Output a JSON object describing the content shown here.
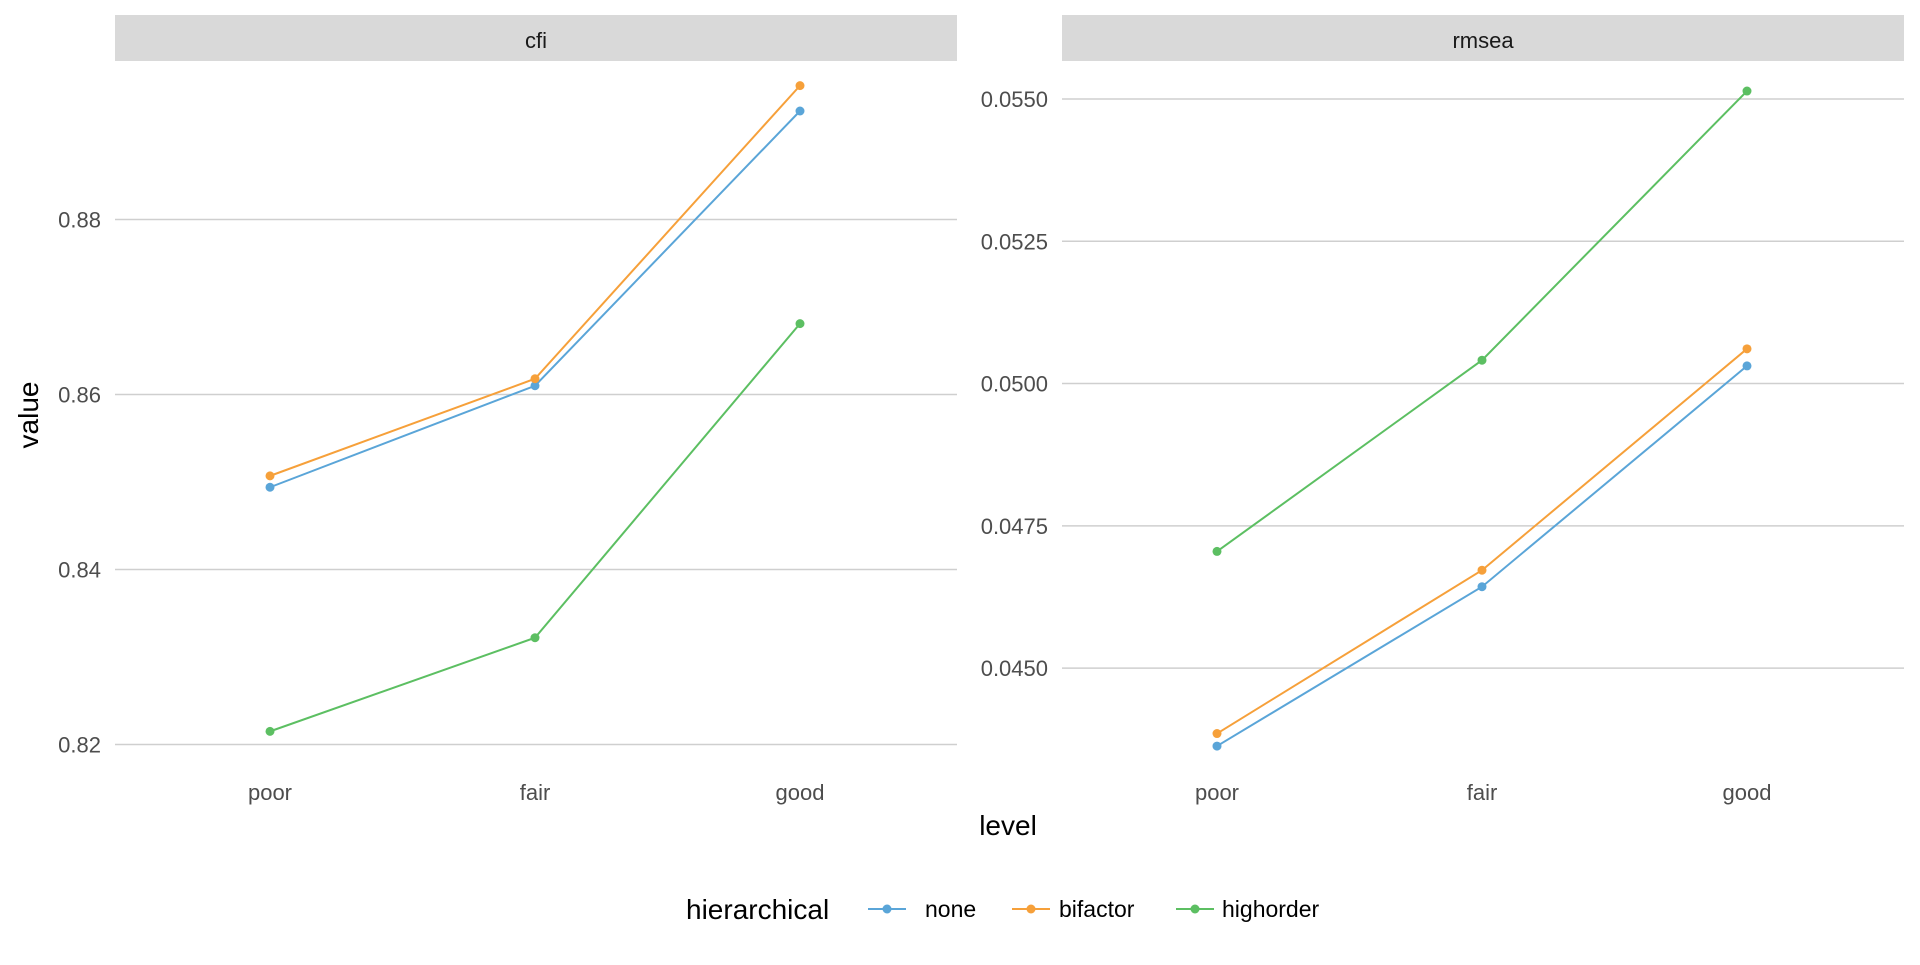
{
  "chart_data": {
    "type": "line",
    "xlabel": "level",
    "ylabel": "value",
    "categories": [
      "poor",
      "fair",
      "good"
    ],
    "legend": {
      "title": "hierarchical",
      "position": "bottom",
      "entries": [
        {
          "name": "none",
          "color": "#5AA5D8"
        },
        {
          "name": "bifactor",
          "color": "#F6A03A"
        },
        {
          "name": "highorder",
          "color": "#5CBF62"
        }
      ]
    },
    "panels": [
      {
        "title": "cfi",
        "ylim": [
          0.818,
          0.898
        ],
        "yticks": [
          {
            "value": 0.82,
            "label": "0.82"
          },
          {
            "value": 0.84,
            "label": "0.84"
          },
          {
            "value": 0.86,
            "label": "0.86"
          },
          {
            "value": 0.88,
            "label": "0.88"
          }
        ],
        "series": [
          {
            "name": "none",
            "values": [
              0.8494,
              0.861,
              0.8924
            ]
          },
          {
            "name": "bifactor",
            "values": [
              0.8507,
              0.8618,
              0.8953
            ]
          },
          {
            "name": "highorder",
            "values": [
              0.8215,
              0.8322,
              0.8681
            ]
          }
        ]
      },
      {
        "title": "rmsea",
        "ylim": [
          0.04335,
          0.05565
        ],
        "yticks": [
          {
            "value": 0.045,
            "label": "0.0450"
          },
          {
            "value": 0.0475,
            "label": "0.0475"
          },
          {
            "value": 0.05,
            "label": "0.0500"
          },
          {
            "value": 0.0525,
            "label": "0.0525"
          },
          {
            "value": 0.055,
            "label": "0.0550"
          }
        ],
        "series": [
          {
            "name": "none",
            "values": [
              0.04363,
              0.04643,
              0.05031
            ]
          },
          {
            "name": "bifactor",
            "values": [
              0.04385,
              0.04672,
              0.05061
            ]
          },
          {
            "name": "highorder",
            "values": [
              0.04705,
              0.05041,
              0.05514
            ]
          }
        ]
      }
    ],
    "grid": true
  }
}
